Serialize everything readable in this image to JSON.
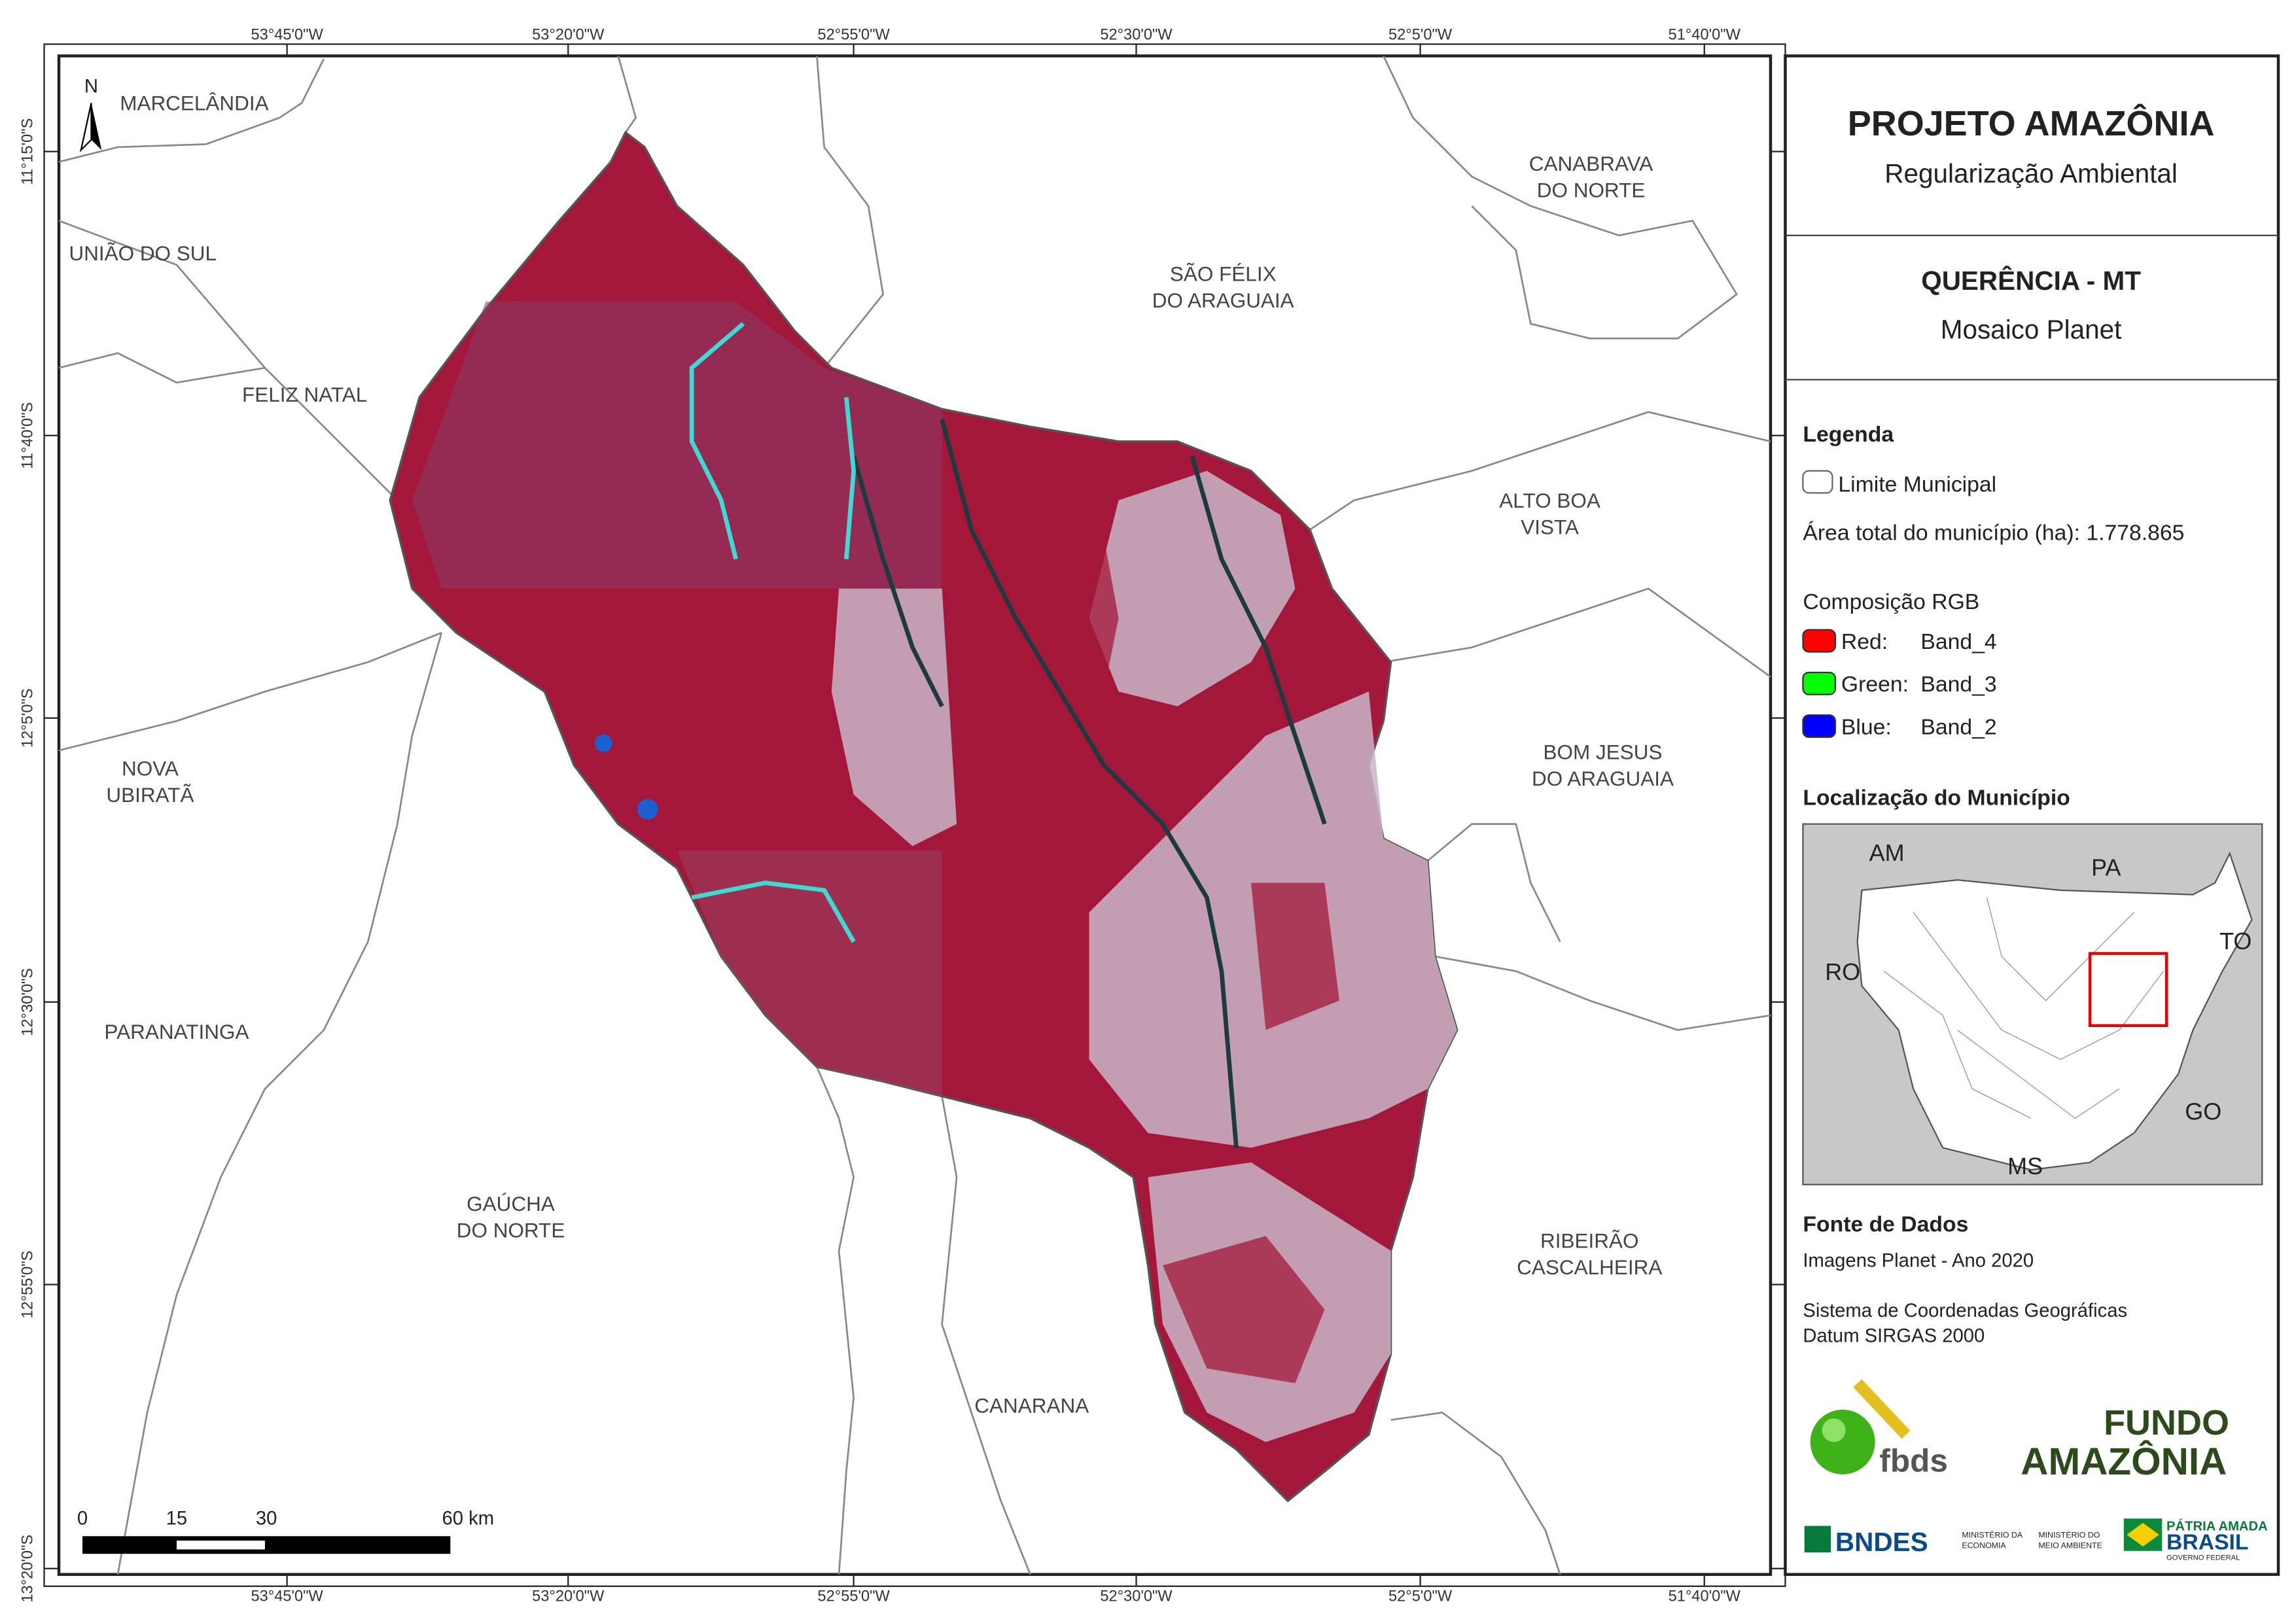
{
  "coords": {
    "top": [
      "53°45'0\"W",
      "53°20'0\"W",
      "52°55'0\"W",
      "52°30'0\"W",
      "52°5'0\"W",
      "51°40'0\"W"
    ],
    "left": [
      "11°15'0\"S",
      "11°40'0\"S",
      "12°5'0\"S",
      "12°30'0\"S",
      "12°55'0\"S",
      "13°20'0\"S"
    ]
  },
  "north": "N",
  "municipalities": [
    {
      "lines": [
        "MARCELÂNDIA"
      ]
    },
    {
      "lines": [
        "UNIÃO DO SUL"
      ]
    },
    {
      "lines": [
        "FELIZ NATAL"
      ]
    },
    {
      "lines": [
        "NOVA",
        "UBIRATÃ"
      ]
    },
    {
      "lines": [
        "PARANATINGA"
      ]
    },
    {
      "lines": [
        "GAÚCHA",
        "DO NORTE"
      ]
    },
    {
      "lines": [
        "CANARANA"
      ]
    },
    {
      "lines": [
        "RIBEIRÃO",
        "CASCALHEIRA"
      ]
    },
    {
      "lines": [
        "BOM JESUS",
        "DO ARAGUAIA"
      ]
    },
    {
      "lines": [
        "ALTO BOA",
        "VISTA"
      ]
    },
    {
      "lines": [
        "SÃO FÉLIX",
        "DO ARAGUAIA"
      ]
    },
    {
      "lines": [
        "CANABRAVA",
        "DO NORTE"
      ]
    }
  ],
  "scale_bar": [
    "0",
    "15",
    "30",
    "60 km"
  ],
  "header": {
    "title": "PROJETO AMAZÔNIA",
    "subtitle": "Regularização Ambiental"
  },
  "map_info": {
    "title": "QUERÊNCIA - MT",
    "subtitle": "Mosaico Planet"
  },
  "legend": {
    "title": "Legenda",
    "boundary": "Limite Municipal",
    "area": "Área total do município (ha): 1.778.865",
    "rgb_title": "Composição RGB",
    "bands": [
      {
        "channel": "Red:",
        "band": "Band_4",
        "color": "#ff0000"
      },
      {
        "channel": "Green:",
        "band": "Band_3",
        "color": "#00ff00"
      },
      {
        "channel": "Blue:",
        "band": "Band_2",
        "color": "#0000ff"
      }
    ]
  },
  "location": {
    "title": "Localização do Município",
    "states": [
      "AM",
      "PA",
      "TO",
      "RO",
      "GO",
      "MS"
    ]
  },
  "sources": {
    "title": "Fonte de Dados",
    "lines": [
      "Imagens Planet - Ano 2020",
      "Sistema de Coordenadas Geográficas",
      "Datum SIRGAS 2000"
    ]
  },
  "logos": {
    "fbds": "fbds",
    "fundo": "FUNDO",
    "amazonia": "AMAZÔNIA",
    "bndes": "BNDES",
    "min_economia": [
      "MINISTÉRIO DA",
      "ECONOMIA"
    ],
    "min_ambiente": [
      "MINISTÉRIO DO",
      "MEIO AMBIENTE"
    ],
    "patria": "PÁTRIA AMADA",
    "brasil": "BRASIL",
    "governo": "GOVERNO FEDERAL"
  }
}
